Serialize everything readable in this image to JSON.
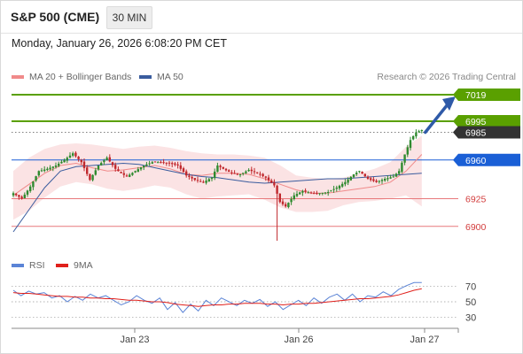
{
  "header": {
    "instrument": "S&P 500 (CME)",
    "timeframe": "30 MIN",
    "datetime": "Monday, January 26, 2026 6:08:20 PM CET"
  },
  "legend": {
    "ma20_bb": "MA 20 + Bollinger Bands",
    "ma50": "MA 50",
    "rsi": "RSI",
    "rsi_ma": "9MA",
    "credit": "Research © 2026 Trading Central"
  },
  "colors": {
    "resistance": "#5aa000",
    "pivot": "#1a5fd6",
    "support": "#e8797b",
    "last_price": "#333333",
    "bb_fill": "#fbe3e4",
    "ma20": "#f08a8a",
    "ma50": "#3a5c9e",
    "rsi": "#5b84d6",
    "rsi_ma": "#e0201b",
    "arrow": "#2f5aa8"
  },
  "chart_data": [
    {
      "type": "candlestick",
      "title": "S&P 500 (CME) 30 MIN",
      "x_ticks": [
        "Jan 23",
        "Jan 26",
        "Jan 27"
      ],
      "ylim": [
        6885,
        7025
      ],
      "levels": [
        {
          "value": 7019,
          "label": "7019",
          "kind": "resistance"
        },
        {
          "value": 6995,
          "label": "6995",
          "kind": "resistance"
        },
        {
          "value": 6985,
          "label": "6985",
          "kind": "last"
        },
        {
          "value": 6960,
          "label": "6960",
          "kind": "pivot"
        },
        {
          "value": 6925,
          "label": "6925",
          "kind": "support"
        },
        {
          "value": 6900,
          "label": "6900",
          "kind": "support"
        }
      ],
      "anchors_close": [
        [
          0,
          6930
        ],
        [
          3,
          6925
        ],
        [
          6,
          6936
        ],
        [
          9,
          6950
        ],
        [
          12,
          6952
        ],
        [
          15,
          6955
        ],
        [
          18,
          6960
        ],
        [
          21,
          6966
        ],
        [
          24,
          6958
        ],
        [
          27,
          6942
        ],
        [
          30,
          6955
        ],
        [
          33,
          6962
        ],
        [
          36,
          6952
        ],
        [
          38,
          6948
        ],
        [
          40,
          6945
        ],
        [
          43,
          6950
        ],
        [
          46,
          6955
        ],
        [
          49,
          6958
        ],
        [
          52,
          6958
        ],
        [
          55,
          6957
        ],
        [
          58,
          6955
        ],
        [
          61,
          6946
        ],
        [
          64,
          6942
        ],
        [
          67,
          6940
        ],
        [
          70,
          6944
        ],
        [
          72,
          6955
        ],
        [
          74,
          6952
        ],
        [
          77,
          6948
        ],
        [
          80,
          6947
        ],
        [
          83,
          6951
        ],
        [
          86,
          6948
        ],
        [
          89,
          6944
        ],
        [
          92,
          6937
        ],
        [
          94,
          6922
        ],
        [
          96,
          6918
        ],
        [
          99,
          6928
        ],
        [
          102,
          6932
        ],
        [
          105,
          6930
        ],
        [
          108,
          6930
        ],
        [
          111,
          6931
        ],
        [
          114,
          6935
        ],
        [
          117,
          6940
        ],
        [
          120,
          6947
        ],
        [
          122,
          6950
        ],
        [
          125,
          6943
        ],
        [
          128,
          6940
        ],
        [
          131,
          6943
        ],
        [
          134,
          6945
        ],
        [
          136,
          6950
        ],
        [
          138,
          6965
        ],
        [
          140,
          6978
        ],
        [
          142,
          6985
        ],
        [
          144,
          6987
        ]
      ],
      "ma20": [
        6928,
        6938,
        6948,
        6955,
        6957,
        6953,
        6950,
        6951,
        6953,
        6955,
        6952,
        6947,
        6946,
        6948,
        6948,
        6947,
        6943,
        6938,
        6933,
        6930,
        6930,
        6932,
        6934,
        6936,
        6940,
        6950,
        6965
      ],
      "ma50": [
        6895,
        6915,
        6935,
        6950,
        6954,
        6955,
        6956,
        6957,
        6956,
        6953,
        6950,
        6947,
        6945,
        6944,
        6942,
        6940,
        6939,
        6940,
        6941,
        6942,
        6943,
        6943,
        6944,
        6945,
        6946,
        6947,
        6948
      ],
      "bb_upper": [
        6950,
        6962,
        6970,
        6974,
        6975,
        6974,
        6972,
        6970,
        6972,
        6973,
        6971,
        6968,
        6966,
        6965,
        6965,
        6964,
        6962,
        6955,
        6946,
        6944,
        6943,
        6944,
        6948,
        6952,
        6958,
        6972,
        6982
      ],
      "bb_lower": [
        6906,
        6914,
        6926,
        6936,
        6940,
        6938,
        6934,
        6932,
        6934,
        6937,
        6935,
        6929,
        6925,
        6927,
        6928,
        6929,
        6924,
        6917,
        6913,
        6913,
        6914,
        6919,
        6922,
        6923,
        6925,
        6928,
        6918
      ]
    },
    {
      "type": "line",
      "title": "RSI",
      "ylim": [
        20,
        80
      ],
      "y_ticks": [
        70,
        50,
        30
      ],
      "series": [
        {
          "name": "RSI",
          "values": [
            65,
            58,
            64,
            60,
            62,
            55,
            58,
            50,
            57,
            52,
            60,
            55,
            58,
            52,
            46,
            50,
            58,
            52,
            48,
            55,
            40,
            49,
            36,
            47,
            38,
            52,
            45,
            55,
            50,
            45,
            52,
            48,
            53,
            44,
            50,
            40,
            46,
            52,
            45,
            55,
            48,
            56,
            60,
            52,
            60,
            50,
            58,
            56,
            63,
            58,
            66,
            71,
            75,
            75
          ]
        },
        {
          "name": "9MA",
          "values": [
            62,
            61,
            61,
            60,
            59,
            58,
            57,
            57,
            56,
            56,
            55,
            55,
            54,
            54,
            53,
            52,
            52,
            51,
            50,
            50,
            49,
            47,
            46,
            45,
            44,
            45,
            46,
            46,
            47,
            47,
            48,
            48,
            48,
            47,
            47,
            46,
            47,
            47,
            48,
            48,
            49,
            50,
            51,
            52,
            53,
            54,
            54,
            55,
            56,
            57,
            59,
            62,
            65,
            67
          ]
        }
      ]
    }
  ]
}
